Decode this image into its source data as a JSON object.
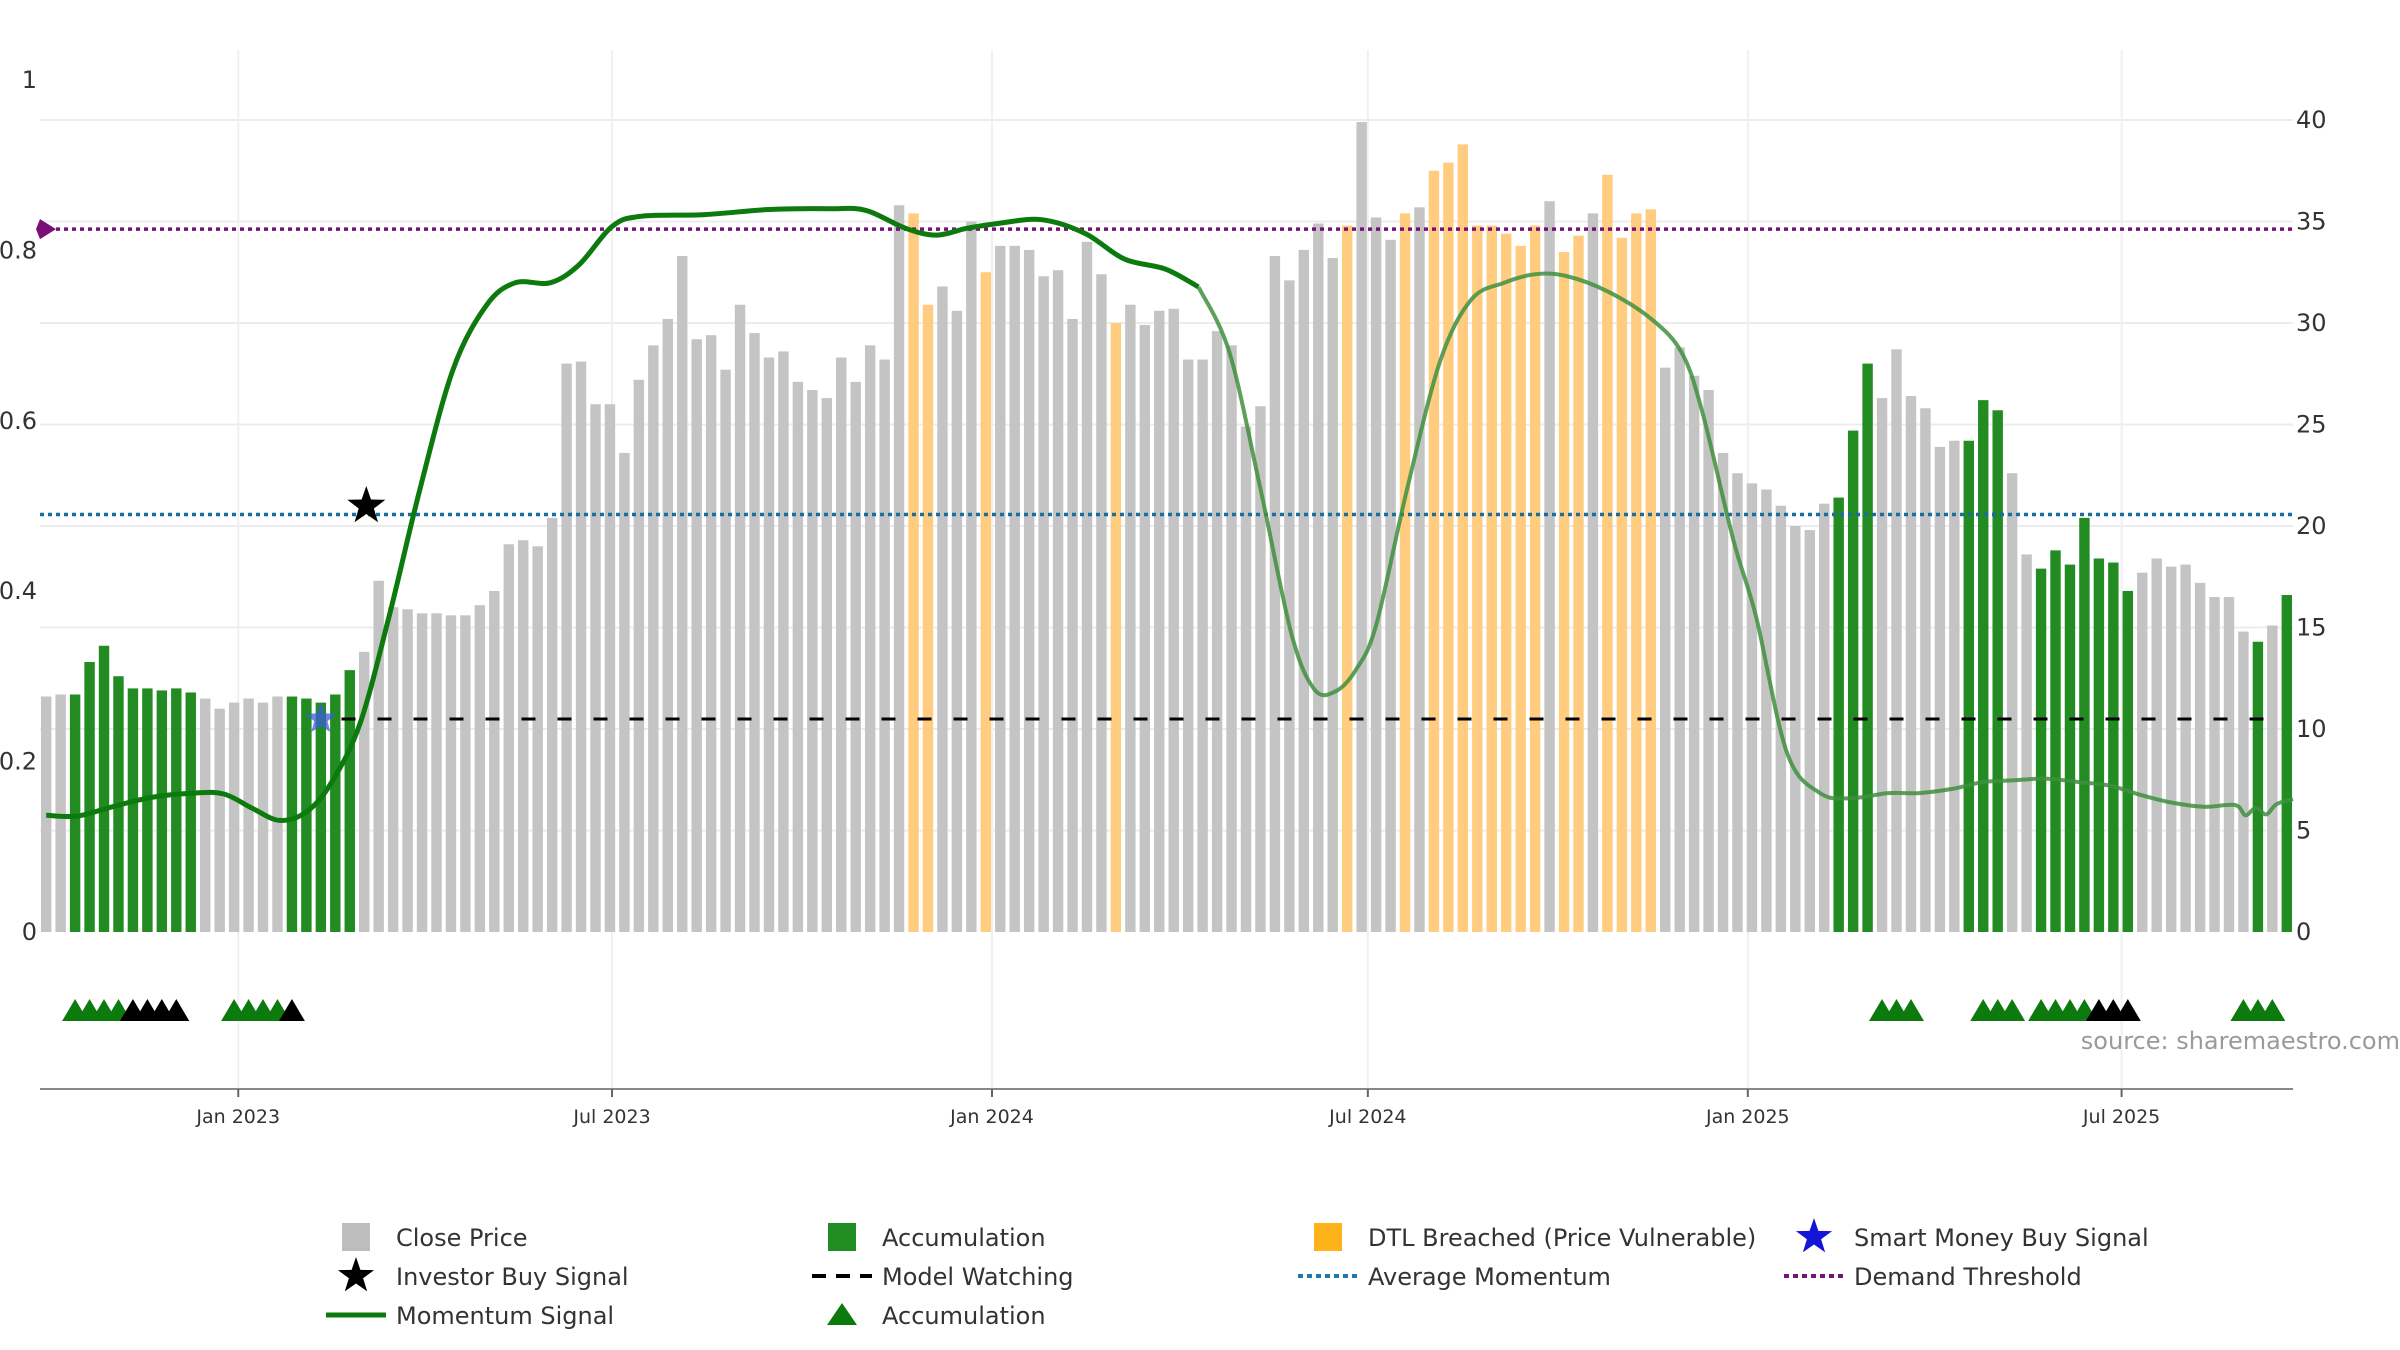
{
  "source": "source: sharemaestro.com",
  "chart_data": {
    "type": "bar",
    "left_axis": {
      "ylim": [
        0,
        1
      ],
      "ticks": [
        {
          "value": 0,
          "label": "0"
        },
        {
          "value": 0.2,
          "label": "0.2"
        },
        {
          "value": 0.4,
          "label": "0.4"
        },
        {
          "value": 0.6,
          "label": "0.6"
        },
        {
          "value": 0.8,
          "label": "0.8"
        },
        {
          "value": 1,
          "label": "1"
        }
      ]
    },
    "right_axis": {
      "ylim": [
        0,
        40
      ],
      "ticks": [
        {
          "value": 0,
          "label": "0"
        },
        {
          "value": 5,
          "label": "5"
        },
        {
          "value": 10,
          "label": "10"
        },
        {
          "value": 15,
          "label": "15"
        },
        {
          "value": 20,
          "label": "20"
        },
        {
          "value": 25,
          "label": "25"
        },
        {
          "value": 30,
          "label": "30"
        },
        {
          "value": 35,
          "label": "35"
        },
        {
          "value": 40,
          "label": "40"
        }
      ]
    },
    "x_axis": {
      "range": [
        "2022-09-27",
        "2025-09-22"
      ],
      "ticks": [
        {
          "date": "2023-01-01",
          "label": "Jan 2023"
        },
        {
          "date": "2023-07-01",
          "label": "Jul 2023"
        },
        {
          "date": "2024-01-01",
          "label": "Jan 2024"
        },
        {
          "date": "2024-07-01",
          "label": "Jul 2024"
        },
        {
          "date": "2025-01-01",
          "label": "Jan 2025"
        },
        {
          "date": "2025-07-01",
          "label": "Jul 2025"
        }
      ]
    },
    "close_price_bars": {
      "start": "2022-09-30",
      "interval_days": 7,
      "category_codes": {
        "G": "Close Price",
        "A": "Accumulation",
        "O": "DTL Breached (Price Vulnerable)"
      },
      "values": [
        11.6,
        11.7,
        11.7,
        13.3,
        14.1,
        12.6,
        12.0,
        12.0,
        11.9,
        12.0,
        11.8,
        11.5,
        11.0,
        11.3,
        11.5,
        11.3,
        11.6,
        11.6,
        11.5,
        11.3,
        11.7,
        12.9,
        13.8,
        17.3,
        16.0,
        15.9,
        15.7,
        15.7,
        15.6,
        15.6,
        16.1,
        16.8,
        19.1,
        19.3,
        19.0,
        20.4,
        28.0,
        28.1,
        26.0,
        26.0,
        23.6,
        27.2,
        28.9,
        30.2,
        33.3,
        29.2,
        29.4,
        27.7,
        30.9,
        29.5,
        28.3,
        28.6,
        27.1,
        26.7,
        26.3,
        28.3,
        27.1,
        28.9,
        28.2,
        35.8,
        35.4,
        30.9,
        31.8,
        30.6,
        35.0,
        32.5,
        33.8,
        33.8,
        33.6,
        32.3,
        32.6,
        30.2,
        34.0,
        32.4,
        30.0,
        30.9,
        29.9,
        30.6,
        30.7,
        28.2,
        28.2,
        29.6,
        28.9,
        24.9,
        25.9,
        33.3,
        32.1,
        33.6,
        34.9,
        33.2,
        34.8,
        39.9,
        35.2,
        34.1,
        35.4,
        35.7,
        37.5,
        37.9,
        38.8,
        34.8,
        34.8,
        34.4,
        33.8,
        34.8,
        36.0,
        33.5,
        34.3,
        35.4,
        37.3,
        34.2,
        35.4,
        35.6,
        27.8,
        28.8,
        27.4,
        26.7,
        23.6,
        22.6,
        22.1,
        21.8,
        21.0,
        20.0,
        19.8,
        21.1,
        21.4,
        24.7,
        28.0,
        26.3,
        28.7,
        26.4,
        25.8,
        23.9,
        24.2,
        24.2,
        26.2,
        25.7,
        22.6,
        18.6,
        17.9,
        18.8,
        18.1,
        20.4,
        18.4,
        18.2,
        16.8,
        17.7,
        18.4,
        18.0,
        18.1,
        17.2,
        16.5,
        16.5,
        14.8,
        14.3,
        15.1,
        16.6
      ],
      "categories": "GGAAAAAAAAAGGGGGGAAAAAGGGGGGGGGGGGGGGGGGGGGGGGGGGGGGGGGGGGGGOOGGGOGGGGGGGGOGGGGGGGGGGGGGGGOGGGOGOOOOOOOOGOOGOOOOGGGGGGGGGGGGAAAGGGGGGAAAGGAAAAAAAGGGGGGGGAGAA"
    },
    "momentum_signal": {
      "axis": "left",
      "points": [
        [
          "2022-09-30",
          0.137
        ],
        [
          "2022-10-15",
          0.136
        ],
        [
          "2022-11-01",
          0.147
        ],
        [
          "2022-11-20",
          0.158
        ],
        [
          "2022-12-10",
          0.163
        ],
        [
          "2022-12-25",
          0.162
        ],
        [
          "2023-01-08",
          0.145
        ],
        [
          "2023-01-21",
          0.131
        ],
        [
          "2023-02-03",
          0.141
        ],
        [
          "2023-02-15",
          0.175
        ],
        [
          "2023-03-01",
          0.245
        ],
        [
          "2023-03-15",
          0.37
        ],
        [
          "2023-03-30",
          0.52
        ],
        [
          "2023-04-15",
          0.66
        ],
        [
          "2023-05-01",
          0.735
        ],
        [
          "2023-05-15",
          0.762
        ],
        [
          "2023-06-01",
          0.762
        ],
        [
          "2023-06-15",
          0.783
        ],
        [
          "2023-07-01",
          0.828
        ],
        [
          "2023-07-15",
          0.84
        ],
        [
          "2023-08-15",
          0.842
        ],
        [
          "2023-09-15",
          0.848
        ],
        [
          "2023-10-15",
          0.849
        ],
        [
          "2023-11-01",
          0.847
        ],
        [
          "2023-11-20",
          0.826
        ],
        [
          "2023-12-05",
          0.818
        ],
        [
          "2023-12-20",
          0.826
        ],
        [
          "2024-01-05",
          0.832
        ],
        [
          "2024-01-25",
          0.836
        ],
        [
          "2024-02-15",
          0.82
        ],
        [
          "2024-03-05",
          0.79
        ],
        [
          "2024-03-25",
          0.778
        ],
        [
          "2024-04-10",
          0.757
        ],
        [
          "2024-04-25",
          0.68
        ],
        [
          "2024-05-10",
          0.52
        ],
        [
          "2024-05-25",
          0.35
        ],
        [
          "2024-06-05",
          0.285
        ],
        [
          "2024-06-15",
          0.282
        ],
        [
          "2024-06-25",
          0.307
        ],
        [
          "2024-07-05",
          0.36
        ],
        [
          "2024-07-20",
          0.52
        ],
        [
          "2024-08-05",
          0.67
        ],
        [
          "2024-08-20",
          0.742
        ],
        [
          "2024-09-05",
          0.762
        ],
        [
          "2024-09-20",
          0.772
        ],
        [
          "2024-10-05",
          0.77
        ],
        [
          "2024-10-25",
          0.752
        ],
        [
          "2024-11-15",
          0.72
        ],
        [
          "2024-11-30",
          0.68
        ],
        [
          "2024-12-10",
          0.61
        ],
        [
          "2024-12-25",
          0.46
        ],
        [
          "2025-01-05",
          0.37
        ],
        [
          "2025-01-20",
          0.21
        ],
        [
          "2025-02-05",
          0.163
        ],
        [
          "2025-02-20",
          0.157
        ],
        [
          "2025-03-10",
          0.163
        ],
        [
          "2025-03-25",
          0.163
        ],
        [
          "2025-04-10",
          0.168
        ],
        [
          "2025-04-25",
          0.176
        ],
        [
          "2025-05-10",
          0.178
        ],
        [
          "2025-05-25",
          0.18
        ],
        [
          "2025-06-10",
          0.176
        ],
        [
          "2025-06-25",
          0.172
        ],
        [
          "2025-07-10",
          0.161
        ],
        [
          "2025-07-25",
          0.152
        ],
        [
          "2025-08-10",
          0.147
        ],
        [
          "2025-08-25",
          0.149
        ],
        [
          "2025-08-30",
          0.137
        ],
        [
          "2025-09-04",
          0.146
        ],
        [
          "2025-09-09",
          0.138
        ],
        [
          "2025-09-14",
          0.15
        ],
        [
          "2025-09-22",
          0.156
        ]
      ]
    },
    "reference_lines": {
      "demand_threshold": 0.825,
      "average_momentum": 0.49,
      "model_watching": 0.25
    },
    "investor_buy_signals": [
      {
        "date": "2023-03-04",
        "value": 0.5
      }
    ],
    "smart_money_buy_signals": [
      {
        "date": "2023-02-10",
        "value": 0.25
      }
    ],
    "accumulation_markers": {
      "green": [
        "2022-10-14",
        "2022-10-21",
        "2022-10-28",
        "2022-11-04",
        "2022-12-30",
        "2023-01-06",
        "2023-01-13",
        "2023-01-20",
        "2025-03-07",
        "2025-03-14",
        "2025-03-21",
        "2025-04-25",
        "2025-05-02",
        "2025-05-09",
        "2025-05-23",
        "2025-05-30",
        "2025-06-06",
        "2025-06-13",
        "2025-08-29",
        "2025-09-05",
        "2025-09-12"
      ],
      "black": [
        "2022-11-11",
        "2022-11-18",
        "2022-11-25",
        "2022-12-02",
        "2023-01-27",
        "2025-06-20",
        "2025-06-27",
        "2025-07-04"
      ]
    },
    "legend": [
      {
        "key": "close_price",
        "label": "Close Price",
        "color": "#bdbdbd",
        "symbol": "square-icon"
      },
      {
        "key": "accumulation_bar",
        "label": "Accumulation",
        "color": "#218c21",
        "symbol": "square-icon"
      },
      {
        "key": "dtl_breached",
        "label": "DTL Breached (Price Vulnerable)",
        "color": "#ffb31a",
        "symbol": "square-icon"
      },
      {
        "key": "smart_money",
        "label": "Smart Money Buy Signal",
        "color": "#1515d8",
        "symbol": "star-icon"
      },
      {
        "key": "investor_buy",
        "label": "Investor Buy Signal",
        "color": "#000000",
        "symbol": "star-icon"
      },
      {
        "key": "model_watching",
        "label": "Model Watching",
        "color": "#000000",
        "symbol": "dashed-line-icon"
      },
      {
        "key": "average_momentum",
        "label": "Average Momentum",
        "color": "#1f77b4",
        "symbol": "dotted-line-icon"
      },
      {
        "key": "demand_threshold",
        "label": "Demand Threshold",
        "color": "#7a0f7a",
        "symbol": "dotted-line-icon"
      },
      {
        "key": "momentum_signal",
        "label": "Momentum Signal",
        "color": "#0d7a0d",
        "symbol": "line-icon"
      },
      {
        "key": "accumulation_triangle",
        "label": "Accumulation",
        "color": "#0d7a0d",
        "symbol": "triangle-icon"
      }
    ],
    "colors": {
      "close_price": "#c4c4c4",
      "accumulation": "#228b22",
      "dtl": "#ffcc80",
      "momentum": "#0d7a0d",
      "momentum_faded": "#3f8f3f",
      "average_momentum": "#1a6e9e",
      "demand_threshold": "#7a0f7a",
      "model_watching": "#000000",
      "grid": "#ececec"
    }
  }
}
